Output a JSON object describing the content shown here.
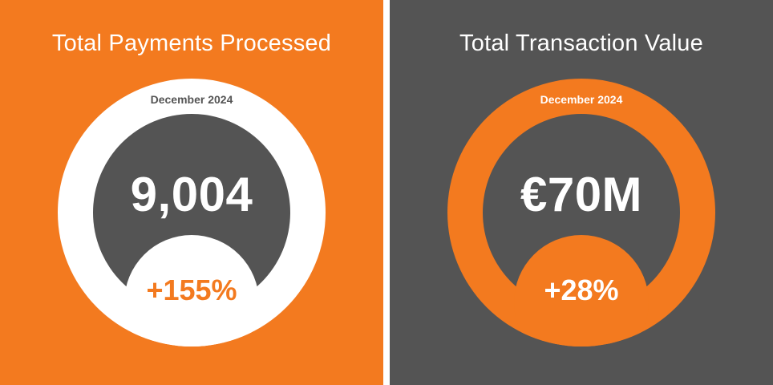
{
  "colors": {
    "orange": "#F37A1F",
    "dark_gray": "#545454",
    "white": "#FFFFFF"
  },
  "cards": [
    {
      "title": "Total Payments Processed",
      "period": "December 2024",
      "value": "9,004",
      "change": "+155%"
    },
    {
      "title": "Total Transaction Value",
      "period": "December 2024",
      "value": "€70M",
      "change": "+28%"
    }
  ]
}
